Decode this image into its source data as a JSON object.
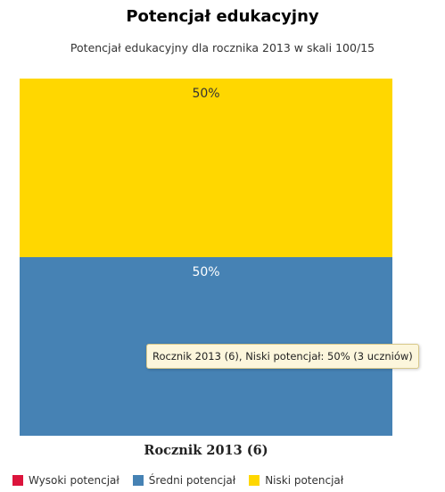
{
  "chart_data": {
    "type": "bar",
    "stacked": true,
    "stack_mode": "percent",
    "title": "Potencjał edukacyjny",
    "subtitle": "Potencjał edukacyjny dla rocznika 2013 w skali 100/15",
    "categories": [
      "Rocznik 2013 (6)"
    ],
    "ylim": [
      0,
      100
    ],
    "series": [
      {
        "name": "Wysoki potencjał",
        "color": "#dc143c",
        "values": [
          0
        ],
        "label": ""
      },
      {
        "name": "Średni potencjał",
        "color": "#4682b4",
        "values": [
          50
        ],
        "label": "50%"
      },
      {
        "name": "Niski potencjał",
        "color": "#ffd700",
        "values": [
          50
        ],
        "label": "50%"
      }
    ],
    "legend_position": "bottom",
    "tooltip": "Rocznik 2013 (6), Niski potencjał: 50% (3 uczniów)"
  }
}
